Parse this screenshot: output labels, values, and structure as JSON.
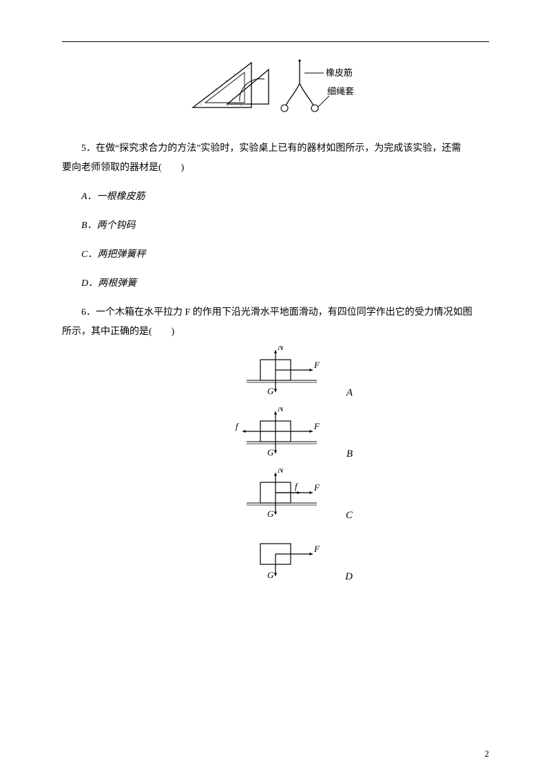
{
  "top_figure": {
    "label_rubber": "橡皮筋",
    "label_loop": "细绳套"
  },
  "q5": {
    "stem_a": "5．在做“探究求合力的方法”实验时，实验桌上已有的器材如图所示，为完成该实验，还需",
    "stem_b": "要向老师领取的器材是(　　)",
    "optA": "A．一根橡皮筋",
    "optB": "B．两个钩码",
    "optC": "C．两把弹簧秤",
    "optD": "D．两根弹簧"
  },
  "q6": {
    "stem_a": "6．一个木箱在水平拉力 F 的作用下沿光滑水平地面滑动，有四位同学作出它的受力情况如图",
    "stem_b": "所示，其中正确的是(　　)",
    "diagrams": {
      "A": {
        "N": true,
        "F": true,
        "G": true,
        "f": false,
        "f_side": "",
        "ground": true
      },
      "B": {
        "N": true,
        "F": true,
        "G": true,
        "f": true,
        "f_side": "left",
        "ground": true
      },
      "C": {
        "N": true,
        "F": true,
        "G": true,
        "f": true,
        "f_side": "right",
        "ground": true
      },
      "D": {
        "N": false,
        "F": true,
        "G": true,
        "f": false,
        "f_side": "",
        "ground": false
      }
    },
    "labels": {
      "N": "N",
      "F": "F",
      "G": "G",
      "f": "f"
    },
    "option_letters": [
      "A",
      "B",
      "C",
      "D"
    ]
  },
  "page_number": "2",
  "colors": {
    "text": "#000000",
    "bg": "#ffffff",
    "stroke": "#000000"
  }
}
